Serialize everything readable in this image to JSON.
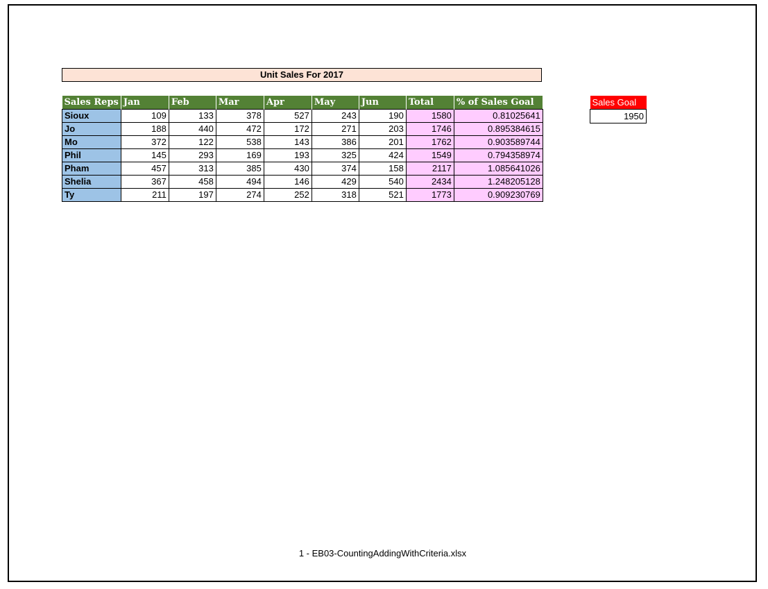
{
  "title": "Unit Sales For 2017",
  "colors": {
    "title_bg": "#fde3d6",
    "header_bg": "#538135",
    "rep_bg": "#9dc3e6",
    "total_bg": "#ffccff",
    "goal_header_bg": "#ff0000"
  },
  "table": {
    "headers": [
      "Sales Reps",
      "Jan",
      "Feb",
      "Mar",
      "Apr",
      "May",
      "Jun",
      "Total",
      "% of Sales Goal"
    ],
    "rows": [
      [
        "Sioux",
        "109",
        "133",
        "378",
        "527",
        "243",
        "190",
        "1580",
        "0.81025641"
      ],
      [
        "Jo",
        "188",
        "440",
        "472",
        "172",
        "271",
        "203",
        "1746",
        "0.895384615"
      ],
      [
        "Mo",
        "372",
        "122",
        "538",
        "143",
        "386",
        "201",
        "1762",
        "0.903589744"
      ],
      [
        "Phil",
        "145",
        "293",
        "169",
        "193",
        "325",
        "424",
        "1549",
        "0.794358974"
      ],
      [
        "Pham",
        "457",
        "313",
        "385",
        "430",
        "374",
        "158",
        "2117",
        "1.085641026"
      ],
      [
        "Shelia",
        "367",
        "458",
        "494",
        "146",
        "429",
        "540",
        "2434",
        "1.248205128"
      ],
      [
        "Ty",
        "211",
        "197",
        "274",
        "252",
        "318",
        "521",
        "1773",
        "0.909230769"
      ]
    ]
  },
  "goal": {
    "label": "Sales Goal",
    "value": "1950"
  },
  "footer": "1 - EB03-CountingAddingWithCriteria.xlsx"
}
